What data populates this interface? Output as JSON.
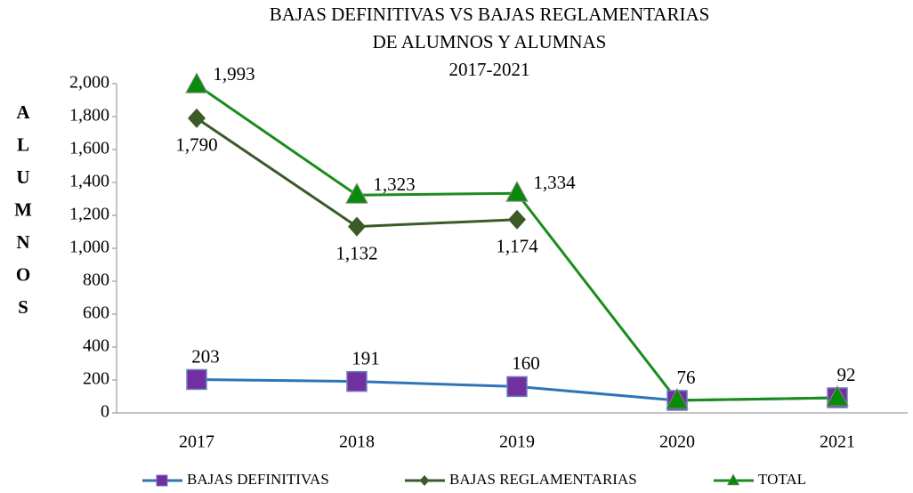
{
  "chart_data": {
    "type": "line",
    "title": [
      "BAJAS DEFINITIVAS VS BAJAS REGLAMENTARIAS",
      "DE ALUMNOS Y ALUMNAS",
      "2017-2021"
    ],
    "y_label": [
      "A",
      "L",
      "U",
      "M",
      "N",
      "O",
      "S"
    ],
    "categories": [
      "2017",
      "2018",
      "2019",
      "2020",
      "2021"
    ],
    "series": [
      {
        "name": "BAJAS DEFINITIVAS",
        "color": "#2e75b6",
        "marker_color": "#7030a0",
        "marker": "square",
        "values": [
          203,
          191,
          160,
          76,
          92
        ],
        "value_labels": [
          "203",
          "191",
          "160",
          "76",
          "92"
        ]
      },
      {
        "name": "BAJAS REGLAMENTARIAS",
        "color": "#3a5a28",
        "marker_color": "#3a5a28",
        "marker": "diamond",
        "values": [
          1790,
          1132,
          1174,
          null,
          null
        ],
        "value_labels": [
          "1,790",
          "1,132",
          "1,174",
          null,
          null
        ]
      },
      {
        "name": "TOTAL",
        "color": "#1a8c1a",
        "marker_color": "#0a8a0a",
        "marker": "triangle",
        "values": [
          1993,
          1323,
          1334,
          76,
          92
        ],
        "value_labels": [
          "1,993",
          "1,323",
          "1,334",
          null,
          null
        ]
      }
    ],
    "ylim": [
      0,
      2000
    ],
    "yticks": [
      0,
      200,
      400,
      600,
      800,
      {
        "value": 1000,
        "label": "1,000"
      },
      {
        "value": 1200,
        "label": "1,200"
      },
      {
        "value": 1400,
        "label": "1,400"
      },
      {
        "value": 1600,
        "label": "1,600"
      },
      {
        "value": 1800,
        "label": "1,800"
      },
      {
        "value": 2000,
        "label": "2,000"
      }
    ],
    "legend": "bottom",
    "grid": false
  }
}
